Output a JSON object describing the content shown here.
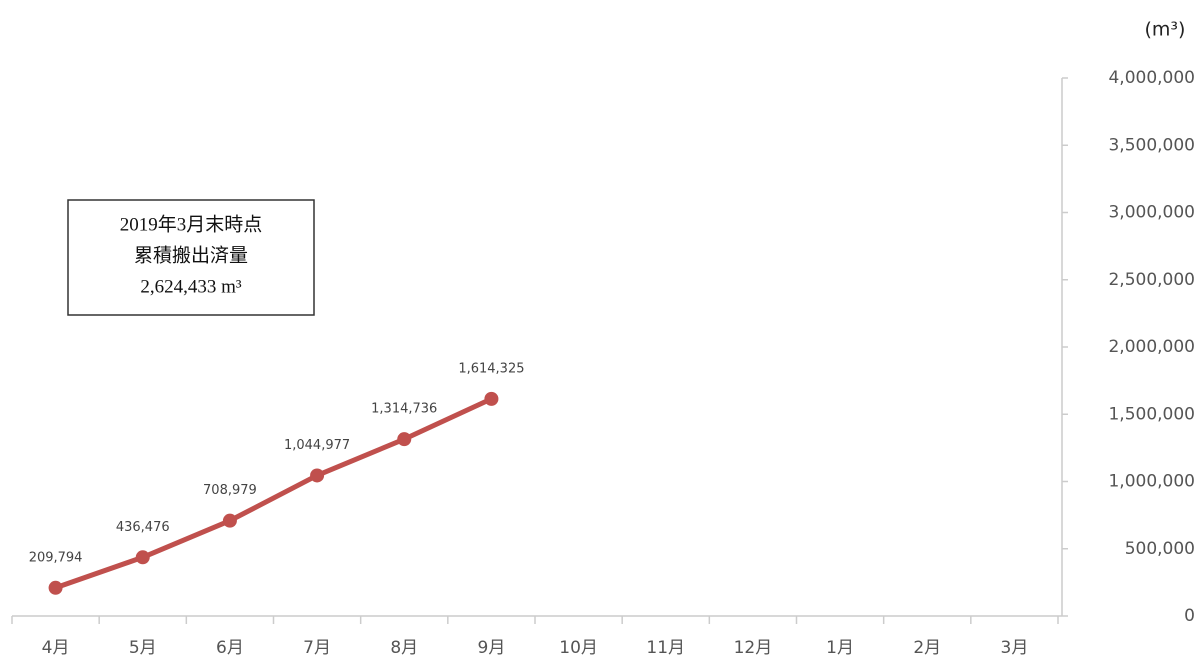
{
  "chart_data": {
    "type": "line",
    "unit": "(m³)",
    "annotation": [
      "2019年3月末時点",
      "累積搬出済量",
      "2,624,433 m³"
    ],
    "categories": [
      "4月",
      "5月",
      "6月",
      "7月",
      "8月",
      "9月",
      "10月",
      "11月",
      "12月",
      "1月",
      "2月",
      "3月"
    ],
    "series": [
      {
        "color": "#c0504d",
        "values": [
          209794,
          436476,
          708979,
          1044977,
          1314736,
          1614325,
          null,
          null,
          null,
          null,
          null,
          null
        ],
        "value_labels": [
          "209,794",
          "436,476",
          "708,979",
          "1,044,977",
          "1,314,736",
          "1,614,325",
          null,
          null,
          null,
          null,
          null,
          null
        ]
      }
    ],
    "ylim": [
      0,
      4000000
    ],
    "yticks": [
      0,
      {
        "value": 500000,
        "label": "500,000"
      },
      {
        "value": 1000000,
        "label": "1,000,000"
      },
      {
        "value": 1500000,
        "label": "1,500,000"
      },
      {
        "value": 2000000,
        "label": "2,000,000"
      },
      {
        "value": 2500000,
        "label": "2,500,000"
      },
      {
        "value": 3000000,
        "label": "3,000,000"
      },
      {
        "value": 3500000,
        "label": "3,500,000"
      },
      {
        "value": 4000000,
        "label": "4,000,000"
      }
    ],
    "y_axis_side": "right"
  }
}
